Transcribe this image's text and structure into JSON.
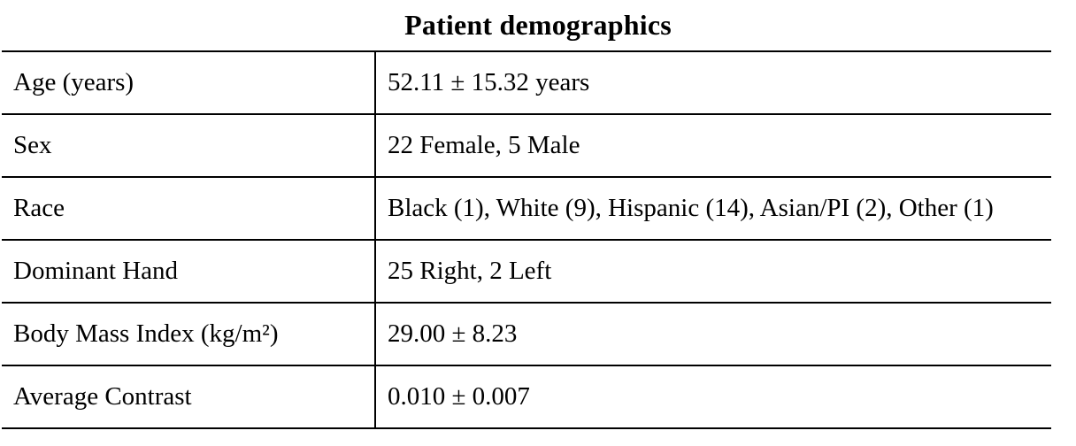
{
  "colors": {
    "background": "#ffffff",
    "text": "#000000",
    "border": "#000000"
  },
  "table": {
    "title": "Patient demographics",
    "rows": [
      {
        "label": "Age (years)",
        "value": "52.11 ± 15.32 years"
      },
      {
        "label": "Sex",
        "value": "22 Female, 5 Male"
      },
      {
        "label": "Race",
        "value": "Black (1), White (9), Hispanic (14), Asian/PI (2), Other (1)"
      },
      {
        "label": "Dominant Hand",
        "value": "25 Right, 2 Left"
      },
      {
        "label": "Body Mass Index (kg/m²)",
        "value": "29.00 ± 8.23"
      },
      {
        "label": "Average Contrast",
        "value": "0.010 ± 0.007"
      }
    ]
  }
}
